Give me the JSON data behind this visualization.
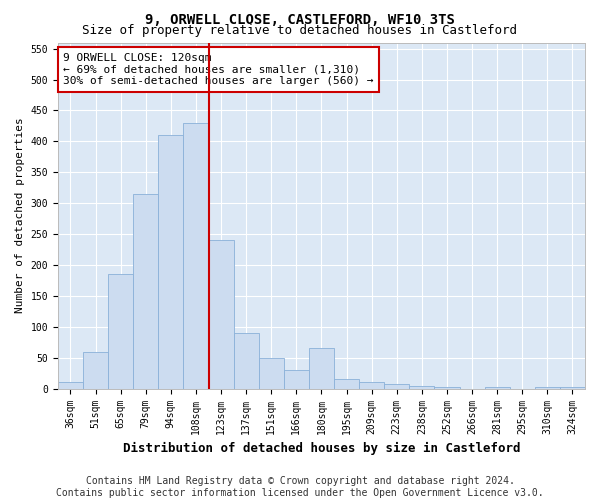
{
  "title": "9, ORWELL CLOSE, CASTLEFORD, WF10 3TS",
  "subtitle": "Size of property relative to detached houses in Castleford",
  "xlabel": "Distribution of detached houses by size in Castleford",
  "ylabel": "Number of detached properties",
  "categories": [
    "36sqm",
    "51sqm",
    "65sqm",
    "79sqm",
    "94sqm",
    "108sqm",
    "123sqm",
    "137sqm",
    "151sqm",
    "166sqm",
    "180sqm",
    "195sqm",
    "209sqm",
    "223sqm",
    "238sqm",
    "252sqm",
    "266sqm",
    "281sqm",
    "295sqm",
    "310sqm",
    "324sqm"
  ],
  "values": [
    10,
    60,
    185,
    315,
    410,
    430,
    240,
    90,
    50,
    30,
    65,
    15,
    10,
    8,
    5,
    2,
    0,
    3,
    0,
    2,
    2
  ],
  "bar_color": "#ccdcf0",
  "bar_edge_color": "#8ab0d8",
  "vline_index": 6,
  "vline_color": "#cc0000",
  "annotation_line1": "9 ORWELL CLOSE: 120sqm",
  "annotation_line2": "← 69% of detached houses are smaller (1,310)",
  "annotation_line3": "30% of semi-detached houses are larger (560) →",
  "annotation_box_facecolor": "#ffffff",
  "annotation_box_edgecolor": "#cc0000",
  "ylim": [
    0,
    560
  ],
  "yticks": [
    0,
    50,
    100,
    150,
    200,
    250,
    300,
    350,
    400,
    450,
    500,
    550
  ],
  "fig_bg_color": "#ffffff",
  "plot_bg_color": "#dce8f5",
  "grid_color": "#ffffff",
  "title_fontsize": 10,
  "subtitle_fontsize": 9,
  "tick_fontsize": 7,
  "ylabel_fontsize": 8,
  "xlabel_fontsize": 9,
  "footer_fontsize": 7,
  "annotation_fontsize": 8,
  "footer_line1": "Contains HM Land Registry data © Crown copyright and database right 2024.",
  "footer_line2": "Contains public sector information licensed under the Open Government Licence v3.0."
}
